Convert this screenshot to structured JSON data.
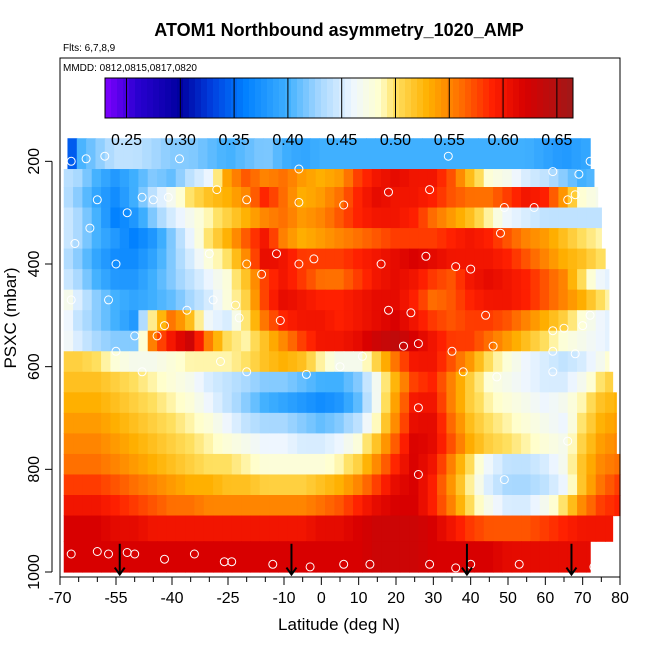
{
  "chart_data": {
    "type": "heatmap",
    "title": "ATOM1 Northbound asymmetry_1020_AMP",
    "flights_label": "Flts: 6,7,8,9",
    "mmdd_label": "MMDD: 0812,0815,0817,0820",
    "xlabel": "Latitude (deg N)",
    "ylabel": "PSXC (mbar)",
    "xlim": [
      -70,
      80
    ],
    "ylim": [
      1000,
      100
    ],
    "x_ticks": [
      -70,
      -55,
      -40,
      -25,
      -10,
      0,
      10,
      20,
      30,
      40,
      50,
      60,
      70,
      80
    ],
    "x_ticklabels": [
      "-70",
      "-55",
      "-40",
      "-25",
      "-10",
      "0",
      "10",
      "20",
      "30",
      "40",
      "50",
      "60",
      "70",
      "80"
    ],
    "x_minor_ticks": [
      -65,
      -60,
      -50,
      -45,
      -35,
      -30,
      -20,
      -15,
      -5,
      5,
      15,
      25,
      35,
      45,
      55,
      65,
      75
    ],
    "y_ticks": [
      200,
      400,
      600,
      800,
      1000
    ],
    "y_ticklabels": [
      "200",
      "400",
      "600",
      "800",
      "1000"
    ],
    "colorbar": {
      "ticks": [
        0.25,
        0.3,
        0.35,
        0.4,
        0.45,
        0.5,
        0.55,
        0.6,
        0.65
      ],
      "ticklabels": [
        "0.25",
        "0.30",
        "0.35",
        "0.40",
        "0.45",
        "0.50",
        "0.55",
        "0.60",
        "0.65"
      ],
      "range": [
        0.23,
        0.665
      ],
      "stops": [
        [
          0.23,
          "#7f00ff"
        ],
        [
          0.26,
          "#2a00d0"
        ],
        [
          0.3,
          "#0000a0"
        ],
        [
          0.33,
          "#0040e0"
        ],
        [
          0.36,
          "#0080ff"
        ],
        [
          0.4,
          "#40b0ff"
        ],
        [
          0.43,
          "#a8d8ff"
        ],
        [
          0.46,
          "#eef6ff"
        ],
        [
          0.485,
          "#ffffd0"
        ],
        [
          0.5,
          "#ffe060"
        ],
        [
          0.53,
          "#ffb000"
        ],
        [
          0.56,
          "#ff7000"
        ],
        [
          0.59,
          "#ff2000"
        ],
        [
          0.62,
          "#d80000"
        ],
        [
          0.665,
          "#a01818"
        ]
      ]
    },
    "arrows_lat": [
      -54,
      -8,
      39,
      67
    ],
    "profile_lat": [
      -69,
      -65,
      -60,
      -55,
      -50,
      -45,
      -40,
      -35,
      -30,
      -25,
      -20,
      -15,
      -10,
      -5,
      0,
      5,
      10,
      15,
      20,
      25,
      30,
      35,
      40,
      45,
      50,
      55,
      60,
      65,
      70,
      75,
      80
    ],
    "rows": [
      {
        "p_top": 155,
        "p_bot": 215,
        "x_start": -68,
        "x_end": 72,
        "values": [
          0.27,
          0.4,
          0.42,
          0.44,
          0.44,
          0.43,
          0.42,
          0.42,
          0.41,
          0.4,
          0.41,
          0.42,
          0.4,
          0.39,
          0.4,
          0.4,
          0.4,
          0.4,
          0.4,
          0.4,
          0.4,
          0.4,
          0.4,
          0.4,
          0.4,
          0.4,
          0.39,
          0.38,
          0.39,
          0.4,
          0.4
        ]
      },
      {
        "p_top": 215,
        "p_bot": 250,
        "x_start": -69,
        "x_end": 73,
        "values": [
          0.44,
          0.43,
          0.4,
          0.38,
          0.4,
          0.42,
          0.41,
          0.44,
          0.46,
          0.54,
          0.57,
          0.55,
          0.56,
          0.54,
          0.53,
          0.54,
          0.58,
          0.6,
          0.61,
          0.6,
          0.6,
          0.57,
          0.52,
          0.48,
          0.47,
          0.45,
          0.44,
          0.42,
          0.4,
          0.41,
          0.42
        ]
      },
      {
        "p_top": 250,
        "p_bot": 290,
        "x_start": -69,
        "x_end": 74,
        "values": [
          0.44,
          0.42,
          0.39,
          0.37,
          0.4,
          0.44,
          0.47,
          0.5,
          0.52,
          0.53,
          0.55,
          0.59,
          0.56,
          0.53,
          0.54,
          0.56,
          0.59,
          0.61,
          0.6,
          0.6,
          0.59,
          0.57,
          0.56,
          0.56,
          0.58,
          0.6,
          0.59,
          0.54,
          0.48,
          0.47,
          0.47
        ]
      },
      {
        "p_top": 290,
        "p_bot": 330,
        "x_start": -69,
        "x_end": 75,
        "values": [
          0.45,
          0.43,
          0.4,
          0.36,
          0.38,
          0.42,
          0.45,
          0.47,
          0.49,
          0.51,
          0.53,
          0.55,
          0.56,
          0.54,
          0.55,
          0.57,
          0.59,
          0.6,
          0.6,
          0.59,
          0.56,
          0.54,
          0.52,
          0.49,
          0.46,
          0.45,
          0.44,
          0.44,
          0.44,
          0.44,
          0.44
        ]
      },
      {
        "p_top": 330,
        "p_bot": 370,
        "x_start": -69,
        "x_end": 75,
        "values": [
          0.45,
          0.43,
          0.4,
          0.38,
          0.36,
          0.38,
          0.42,
          0.46,
          0.5,
          0.53,
          0.57,
          0.6,
          0.55,
          0.53,
          0.54,
          0.55,
          0.56,
          0.57,
          0.58,
          0.58,
          0.58,
          0.59,
          0.6,
          0.59,
          0.57,
          0.55,
          0.54,
          0.52,
          0.5,
          0.49,
          0.49
        ]
      },
      {
        "p_top": 370,
        "p_bot": 410,
        "x_start": -69,
        "x_end": 76,
        "values": [
          0.44,
          0.42,
          0.39,
          0.37,
          0.37,
          0.39,
          0.42,
          0.45,
          0.48,
          0.5,
          0.55,
          0.61,
          0.6,
          0.58,
          0.58,
          0.58,
          0.59,
          0.6,
          0.61,
          0.62,
          0.61,
          0.6,
          0.6,
          0.6,
          0.59,
          0.57,
          0.55,
          0.53,
          0.52,
          0.5,
          0.5
        ]
      },
      {
        "p_top": 410,
        "p_bot": 450,
        "x_start": -69,
        "x_end": 77,
        "values": [
          0.45,
          0.43,
          0.4,
          0.38,
          0.38,
          0.4,
          0.42,
          0.44,
          0.46,
          0.48,
          0.52,
          0.58,
          0.6,
          0.58,
          0.56,
          0.56,
          0.58,
          0.6,
          0.61,
          0.6,
          0.58,
          0.57,
          0.6,
          0.61,
          0.6,
          0.59,
          0.57,
          0.55,
          0.5,
          0.46,
          0.45
        ]
      },
      {
        "p_top": 450,
        "p_bot": 490,
        "x_start": -69,
        "x_end": 77,
        "values": [
          0.48,
          0.45,
          0.42,
          0.4,
          0.39,
          0.4,
          0.41,
          0.43,
          0.45,
          0.48,
          0.51,
          0.58,
          0.61,
          0.6,
          0.59,
          0.59,
          0.6,
          0.61,
          0.61,
          0.59,
          0.56,
          0.57,
          0.59,
          0.6,
          0.6,
          0.59,
          0.57,
          0.55,
          0.53,
          0.5,
          0.48
        ]
      },
      {
        "p_top": 490,
        "p_bot": 530,
        "x_start": -69,
        "x_end": 77,
        "values": [
          0.47,
          0.44,
          0.42,
          0.4,
          0.38,
          0.5,
          0.56,
          0.52,
          0.46,
          0.45,
          0.5,
          0.56,
          0.59,
          0.6,
          0.6,
          0.59,
          0.6,
          0.61,
          0.62,
          0.6,
          0.58,
          0.57,
          0.58,
          0.58,
          0.57,
          0.55,
          0.53,
          0.51,
          0.48,
          0.46,
          0.45
        ]
      },
      {
        "p_top": 530,
        "p_bot": 570,
        "x_start": -69,
        "x_end": 77,
        "values": [
          0.47,
          0.45,
          0.43,
          0.42,
          0.42,
          0.56,
          0.6,
          0.63,
          0.55,
          0.5,
          0.49,
          0.52,
          0.55,
          0.58,
          0.6,
          0.6,
          0.61,
          0.63,
          0.64,
          0.62,
          0.6,
          0.58,
          0.58,
          0.56,
          0.54,
          0.52,
          0.5,
          0.48,
          0.47,
          0.46,
          0.45
        ]
      },
      {
        "p_top": 570,
        "p_bot": 610,
        "x_start": -69,
        "x_end": 77,
        "values": [
          0.51,
          0.51,
          0.5,
          0.48,
          0.47,
          0.47,
          0.48,
          0.49,
          0.49,
          0.49,
          0.5,
          0.52,
          0.53,
          0.52,
          0.49,
          0.47,
          0.47,
          0.51,
          0.56,
          0.6,
          0.6,
          0.57,
          0.54,
          0.5,
          0.48,
          0.46,
          0.45,
          0.44,
          0.45,
          0.47,
          0.5
        ]
      },
      {
        "p_top": 610,
        "p_bot": 650,
        "x_start": -69,
        "x_end": 78,
        "values": [
          0.52,
          0.52,
          0.52,
          0.51,
          0.5,
          0.49,
          0.48,
          0.47,
          0.45,
          0.44,
          0.43,
          0.42,
          0.42,
          0.41,
          0.4,
          0.4,
          0.42,
          0.47,
          0.53,
          0.58,
          0.59,
          0.55,
          0.51,
          0.48,
          0.47,
          0.46,
          0.45,
          0.45,
          0.47,
          0.5,
          0.52
        ]
      },
      {
        "p_top": 650,
        "p_bot": 690,
        "x_start": -69,
        "x_end": 79,
        "values": [
          0.53,
          0.53,
          0.53,
          0.52,
          0.51,
          0.5,
          0.49,
          0.48,
          0.46,
          0.44,
          0.42,
          0.4,
          0.39,
          0.38,
          0.37,
          0.38,
          0.41,
          0.47,
          0.54,
          0.6,
          0.6,
          0.55,
          0.51,
          0.49,
          0.48,
          0.47,
          0.46,
          0.47,
          0.49,
          0.52,
          0.53
        ]
      },
      {
        "p_top": 690,
        "p_bot": 730,
        "x_start": -69,
        "x_end": 79,
        "values": [
          0.54,
          0.54,
          0.54,
          0.53,
          0.52,
          0.51,
          0.5,
          0.49,
          0.48,
          0.46,
          0.44,
          0.43,
          0.43,
          0.42,
          0.41,
          0.42,
          0.44,
          0.49,
          0.55,
          0.61,
          0.61,
          0.56,
          0.52,
          0.5,
          0.49,
          0.48,
          0.47,
          0.46,
          0.5,
          0.53,
          0.54
        ]
      },
      {
        "p_top": 730,
        "p_bot": 770,
        "x_start": -69,
        "x_end": 79,
        "values": [
          0.55,
          0.55,
          0.55,
          0.54,
          0.53,
          0.52,
          0.51,
          0.5,
          0.49,
          0.48,
          0.47,
          0.46,
          0.46,
          0.45,
          0.45,
          0.46,
          0.48,
          0.52,
          0.57,
          0.62,
          0.61,
          0.57,
          0.53,
          0.51,
          0.5,
          0.49,
          0.48,
          0.47,
          0.51,
          0.54,
          0.55
        ]
      },
      {
        "p_top": 770,
        "p_bot": 810,
        "x_start": -69,
        "x_end": 80,
        "values": [
          0.56,
          0.56,
          0.56,
          0.55,
          0.54,
          0.53,
          0.52,
          0.51,
          0.5,
          0.5,
          0.49,
          0.48,
          0.48,
          0.48,
          0.48,
          0.49,
          0.51,
          0.55,
          0.59,
          0.62,
          0.6,
          0.55,
          0.5,
          0.46,
          0.44,
          0.44,
          0.45,
          0.47,
          0.52,
          0.55,
          0.56
        ]
      },
      {
        "p_top": 810,
        "p_bot": 850,
        "x_start": -69,
        "x_end": 80,
        "values": [
          0.58,
          0.58,
          0.58,
          0.57,
          0.56,
          0.55,
          0.54,
          0.53,
          0.53,
          0.52,
          0.52,
          0.51,
          0.51,
          0.51,
          0.52,
          0.53,
          0.55,
          0.58,
          0.61,
          0.62,
          0.59,
          0.54,
          0.49,
          0.45,
          0.43,
          0.43,
          0.44,
          0.46,
          0.52,
          0.56,
          0.58
        ]
      },
      {
        "p_top": 850,
        "p_bot": 890,
        "x_start": -69,
        "x_end": 80,
        "values": [
          0.6,
          0.6,
          0.6,
          0.59,
          0.58,
          0.57,
          0.56,
          0.56,
          0.55,
          0.55,
          0.55,
          0.55,
          0.55,
          0.55,
          0.56,
          0.57,
          0.59,
          0.61,
          0.62,
          0.62,
          0.59,
          0.55,
          0.5,
          0.47,
          0.45,
          0.45,
          0.47,
          0.5,
          0.55,
          0.58,
          0.59
        ]
      },
      {
        "p_top": 890,
        "p_bot": 940,
        "x_start": -69,
        "x_end": 78,
        "values": [
          0.62,
          0.62,
          0.62,
          0.61,
          0.61,
          0.6,
          0.6,
          0.6,
          0.6,
          0.6,
          0.6,
          0.6,
          0.6,
          0.6,
          0.61,
          0.61,
          0.62,
          0.63,
          0.63,
          0.63,
          0.62,
          0.6,
          0.58,
          0.57,
          0.57,
          0.57,
          0.58,
          0.59,
          0.6,
          0.6,
          0.6
        ]
      },
      {
        "p_top": 940,
        "p_bot": 1000,
        "x_start": -69,
        "x_end": 72,
        "values": [
          0.62,
          0.62,
          0.62,
          0.62,
          0.62,
          0.62,
          0.62,
          0.62,
          0.62,
          0.62,
          0.62,
          0.62,
          0.62,
          0.62,
          0.62,
          0.62,
          0.62,
          0.63,
          0.63,
          0.63,
          0.62,
          0.62,
          0.62,
          0.62,
          0.61,
          0.61,
          0.61,
          0.61,
          0.61,
          0.61,
          0.61
        ]
      }
    ],
    "obs_points": [
      [
        -67,
        200
      ],
      [
        -63,
        195
      ],
      [
        -58,
        190
      ],
      [
        -38,
        195
      ],
      [
        -6,
        215
      ],
      [
        34,
        190
      ],
      [
        62,
        220
      ],
      [
        69,
        225
      ],
      [
        72,
        200
      ],
      [
        -60,
        275
      ],
      [
        -52,
        300
      ],
      [
        -48,
        270
      ],
      [
        -45,
        275
      ],
      [
        -41,
        270
      ],
      [
        -28,
        255
      ],
      [
        -20,
        275
      ],
      [
        -6,
        280
      ],
      [
        6,
        285
      ],
      [
        18,
        260
      ],
      [
        29,
        255
      ],
      [
        49,
        290
      ],
      [
        57,
        290
      ],
      [
        66,
        275
      ],
      [
        68,
        265
      ],
      [
        -66,
        360
      ],
      [
        -62,
        330
      ],
      [
        -55,
        400
      ],
      [
        -30,
        380
      ],
      [
        -12,
        380
      ],
      [
        -20,
        400
      ],
      [
        -16,
        420
      ],
      [
        -6,
        400
      ],
      [
        -2,
        390
      ],
      [
        16,
        400
      ],
      [
        28,
        385
      ],
      [
        36,
        405
      ],
      [
        40,
        410
      ],
      [
        48,
        340
      ],
      [
        -67,
        470
      ],
      [
        -57,
        470
      ],
      [
        -50,
        540
      ],
      [
        -44,
        540
      ],
      [
        -42,
        520
      ],
      [
        -36,
        490
      ],
      [
        -29,
        470
      ],
      [
        -23,
        480
      ],
      [
        -22,
        505
      ],
      [
        -11,
        510
      ],
      [
        18,
        490
      ],
      [
        24,
        495
      ],
      [
        44,
        500
      ],
      [
        62,
        530
      ],
      [
        65,
        525
      ],
      [
        70,
        520
      ],
      [
        72,
        500
      ],
      [
        -55,
        570
      ],
      [
        -48,
        610
      ],
      [
        -27,
        590
      ],
      [
        -20,
        610
      ],
      [
        5,
        600
      ],
      [
        11,
        580
      ],
      [
        22,
        560
      ],
      [
        26,
        555
      ],
      [
        35,
        570
      ],
      [
        46,
        560
      ],
      [
        62,
        570
      ],
      [
        68,
        575
      ],
      [
        -4,
        615
      ],
      [
        38,
        610
      ],
      [
        47,
        620
      ],
      [
        62,
        610
      ],
      [
        26,
        680
      ],
      [
        66,
        745
      ],
      [
        26,
        810
      ],
      [
        49,
        820
      ],
      [
        -67,
        965
      ],
      [
        -60,
        960
      ],
      [
        -57,
        965
      ],
      [
        -52,
        962
      ],
      [
        -50,
        965
      ],
      [
        -42,
        975
      ],
      [
        -34,
        965
      ],
      [
        -26,
        980
      ],
      [
        -24,
        980
      ],
      [
        -13,
        985
      ],
      [
        -3,
        990
      ],
      [
        6,
        985
      ],
      [
        13,
        985
      ],
      [
        29,
        985
      ],
      [
        36,
        992
      ],
      [
        40,
        985
      ],
      [
        53,
        985
      ],
      [
        73,
        990
      ],
      [
        75,
        970
      ]
    ]
  }
}
